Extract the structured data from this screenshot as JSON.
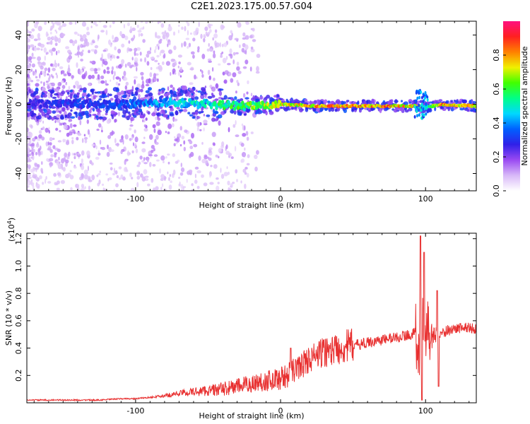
{
  "title": "C2E1.2023.175.00.57.G04",
  "chart_data": [
    {
      "type": "heatmap",
      "xlabel": "Height of straight line (km)",
      "ylabel": "Frequency (Hz)",
      "xlim": [
        -175,
        135
      ],
      "ylim": [
        -50,
        48
      ],
      "x_ticks": [
        -100,
        0,
        100
      ],
      "x_tick_labels": [
        "-100",
        "0",
        "100"
      ],
      "y_ticks": [
        -40,
        -20,
        0,
        20,
        40
      ],
      "y_tick_labels": [
        "-40",
        "-20",
        "0",
        "20",
        "40"
      ],
      "colorbar": {
        "label": "Normalized spectral amplitude",
        "range": [
          0.0,
          1.0
        ],
        "ticks": [
          0.0,
          0.2,
          0.4,
          0.6,
          0.8
        ],
        "tick_labels": [
          "0.0",
          "0.2",
          "0.4",
          "0.6",
          "0.8"
        ],
        "colormap": [
          "#ffffff",
          "#d8b8f8",
          "#9a4af2",
          "#3020e8",
          "#0060ff",
          "#00d8ff",
          "#00ff88",
          "#40ff00",
          "#f0f000",
          "#ff8000",
          "#ff2020",
          "#ff1080"
        ]
      },
      "ridge": {
        "x": [
          -175,
          -150,
          -125,
          -100,
          -75,
          -50,
          -25,
          0,
          25,
          50,
          75,
          95,
          100,
          110,
          135
        ],
        "frequency_center": [
          0,
          0,
          0,
          0,
          1,
          0,
          -1,
          0,
          -1,
          -1,
          -1,
          -1,
          -2,
          0,
          -1
        ],
        "amplitude": [
          0.25,
          0.3,
          0.3,
          0.35,
          0.45,
          0.5,
          0.6,
          0.7,
          0.8,
          0.85,
          0.8,
          0.75,
          0.5,
          0.8,
          0.75
        ]
      }
    },
    {
      "type": "line",
      "xlabel": "Height of straight line (km)",
      "ylabel": "SNR (10 * v/v)",
      "y_scale_note": "(x10",
      "y_scale_exp": "4",
      "y_scale_close": ")",
      "xlim": [
        -175,
        135
      ],
      "ylim": [
        0,
        1.24
      ],
      "x_ticks": [
        -100,
        0,
        100
      ],
      "x_tick_labels": [
        "-100",
        "0",
        "100"
      ],
      "y_ticks": [
        0.2,
        0.4,
        0.6,
        0.8,
        1.0,
        1.2
      ],
      "y_tick_labels": [
        "0.2",
        "0.4",
        "0.6",
        "0.8",
        "1.0",
        "1.2"
      ],
      "line_color": "#e83030",
      "series": [
        {
          "x": [
            -175,
            -150,
            -125,
            -110,
            -100,
            -90,
            -80,
            -70,
            -60,
            -50,
            -40,
            -30,
            -20,
            -10,
            0,
            5,
            10,
            15,
            20,
            30,
            40,
            50,
            60,
            70,
            80,
            90,
            95,
            100,
            105,
            110,
            115,
            120,
            125,
            130,
            135
          ],
          "values": [
            0.02,
            0.02,
            0.02,
            0.03,
            0.03,
            0.04,
            0.05,
            0.07,
            0.08,
            0.09,
            0.1,
            0.12,
            0.14,
            0.16,
            0.18,
            0.2,
            0.24,
            0.28,
            0.32,
            0.37,
            0.4,
            0.42,
            0.44,
            0.46,
            0.48,
            0.5,
            0.52,
            0.5,
            0.48,
            0.5,
            0.53,
            0.54,
            0.55,
            0.55,
            0.54
          ]
        }
      ]
    }
  ]
}
